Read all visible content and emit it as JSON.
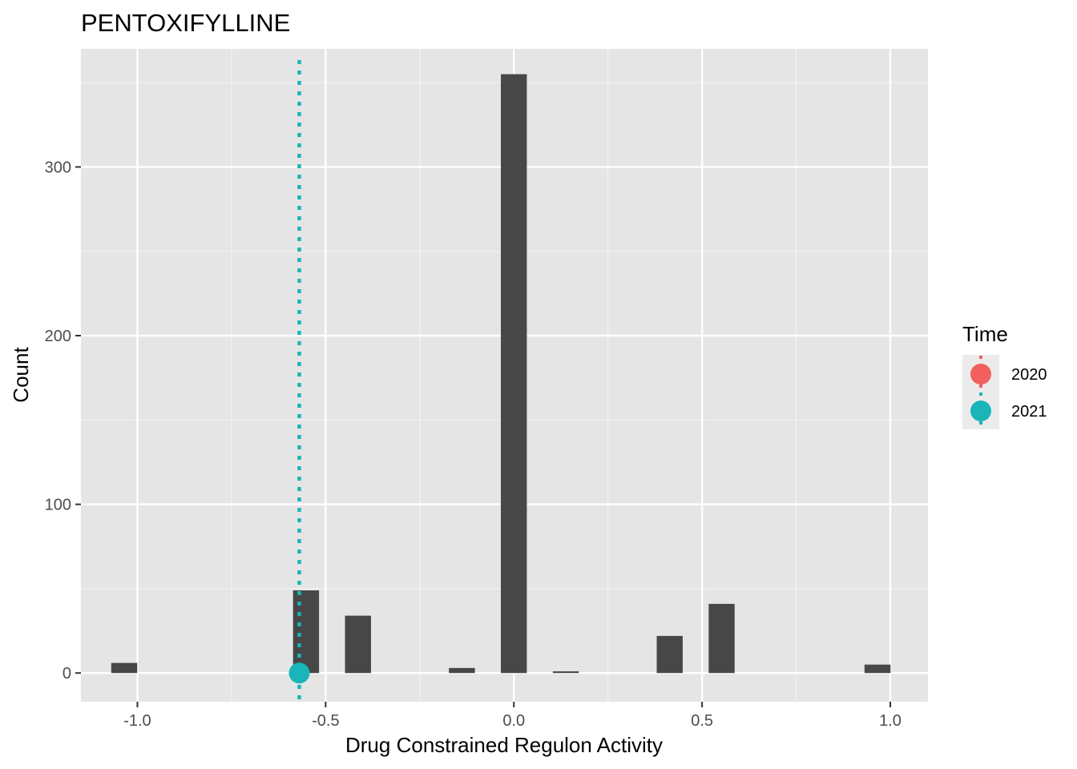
{
  "chart_data": {
    "type": "bar",
    "title": "PENTOXIFYLLINE",
    "xlabel": "Drug Constrained Regulon Activity",
    "ylabel": "Count",
    "xlim": [
      -1.15,
      1.1
    ],
    "ylim": [
      -17,
      370
    ],
    "x_ticks": [
      -1.0,
      -0.5,
      0.0,
      0.5,
      1.0
    ],
    "x_tick_labels": [
      "-1.0",
      "-0.5",
      "0.0",
      "0.5",
      "1.0"
    ],
    "y_ticks": [
      0,
      100,
      200,
      300
    ],
    "y_tick_labels": [
      "0",
      "100",
      "200",
      "300"
    ],
    "grid": true,
    "bar_width": 0.069,
    "bars": [
      {
        "x": -1.035,
        "count": 6
      },
      {
        "x": -0.552,
        "count": 49
      },
      {
        "x": -0.414,
        "count": 34
      },
      {
        "x": -0.138,
        "count": 3
      },
      {
        "x": 0.0,
        "count": 355
      },
      {
        "x": 0.138,
        "count": 1
      },
      {
        "x": 0.414,
        "count": 22
      },
      {
        "x": 0.552,
        "count": 41
      },
      {
        "x": 0.966,
        "count": 5
      }
    ],
    "bar_color": "#474747",
    "markers": [
      {
        "series": "2021",
        "x": -0.57,
        "y": 0,
        "color": "#19B5B8",
        "line": "dotted"
      }
    ],
    "legend": {
      "title": "Time",
      "position": "right",
      "items": [
        {
          "label": "2020",
          "color": "#F25F5C"
        },
        {
          "label": "2021",
          "color": "#19B5B8"
        }
      ]
    }
  }
}
